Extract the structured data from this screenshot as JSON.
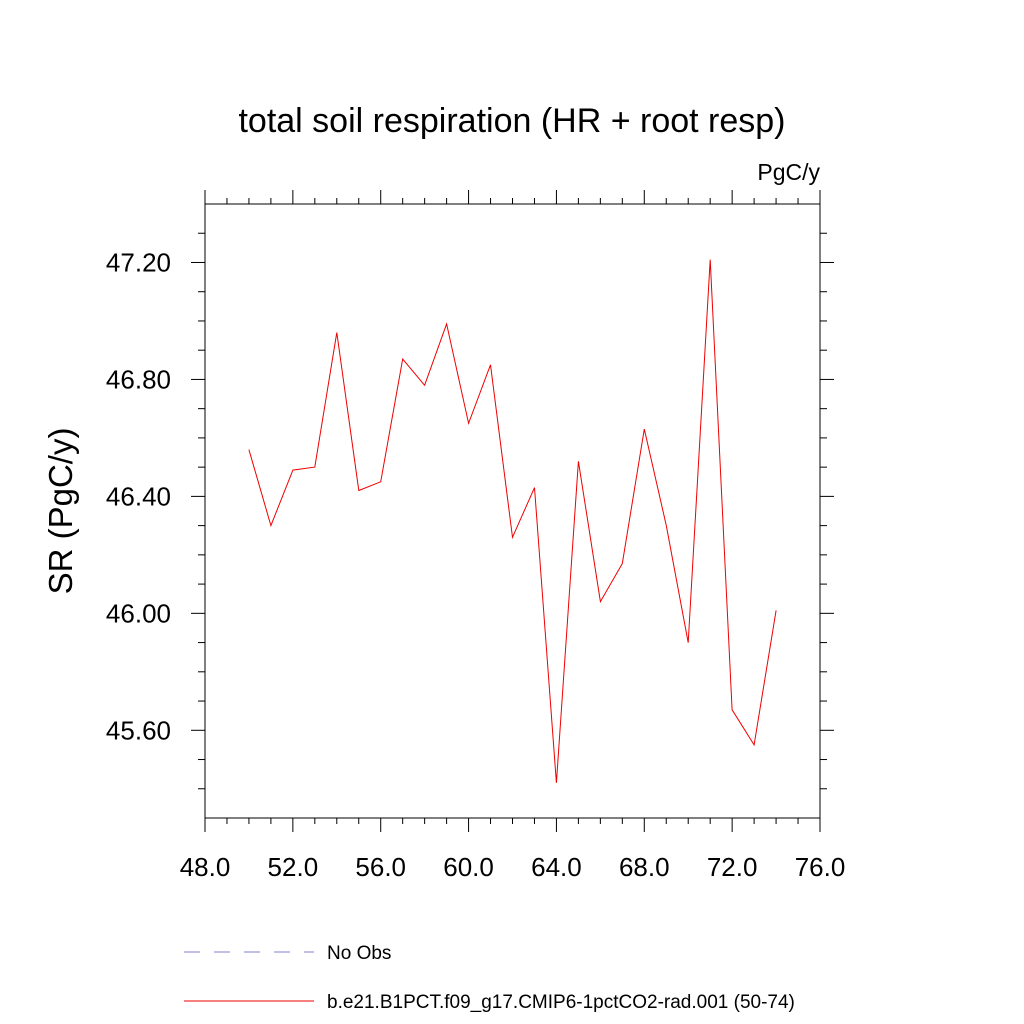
{
  "chart_data": {
    "type": "line",
    "title": "total soil respiration (HR + root resp)",
    "units": "PgC/y",
    "xlabel": "",
    "ylabel": "SR  (PgC/y)",
    "xlim": [
      48.0,
      76.0
    ],
    "ylim": [
      45.3,
      47.4
    ],
    "x_ticks": [
      48.0,
      52.0,
      56.0,
      60.0,
      64.0,
      68.0,
      72.0,
      76.0
    ],
    "x_tick_labels": [
      "48.0",
      "52.0",
      "56.0",
      "60.0",
      "64.0",
      "68.0",
      "72.0",
      "76.0"
    ],
    "y_ticks": [
      45.6,
      46.0,
      46.4,
      46.8,
      47.2
    ],
    "y_tick_labels": [
      "45.60",
      "46.00",
      "46.40",
      "46.80",
      "47.20"
    ],
    "grid": false,
    "legend_placement": "bottom",
    "legend": [
      {
        "label": "No Obs",
        "style": "dashed",
        "color": "#7f7fd0"
      },
      {
        "label": "b.e21.B1PCT.f09_g17.CMIP6-1pctCO2-rad.001 (50-74)",
        "style": "solid",
        "color": "#ee0000"
      }
    ],
    "series": [
      {
        "name": "b.e21.B1PCT.f09_g17.CMIP6-1pctCO2-rad.001 (50-74)",
        "color": "#ee0000",
        "x": [
          50,
          51,
          52,
          53,
          54,
          55,
          56,
          57,
          58,
          59,
          60,
          61,
          62,
          63,
          64,
          65,
          66,
          67,
          68,
          69,
          70,
          71,
          72,
          73,
          74
        ],
        "y": [
          46.56,
          46.3,
          46.49,
          46.5,
          46.96,
          46.42,
          46.45,
          46.87,
          46.78,
          46.99,
          46.65,
          46.85,
          46.26,
          46.43,
          45.42,
          46.52,
          46.04,
          46.17,
          46.63,
          46.3,
          45.9,
          47.21,
          45.67,
          45.55,
          46.01
        ]
      }
    ]
  }
}
